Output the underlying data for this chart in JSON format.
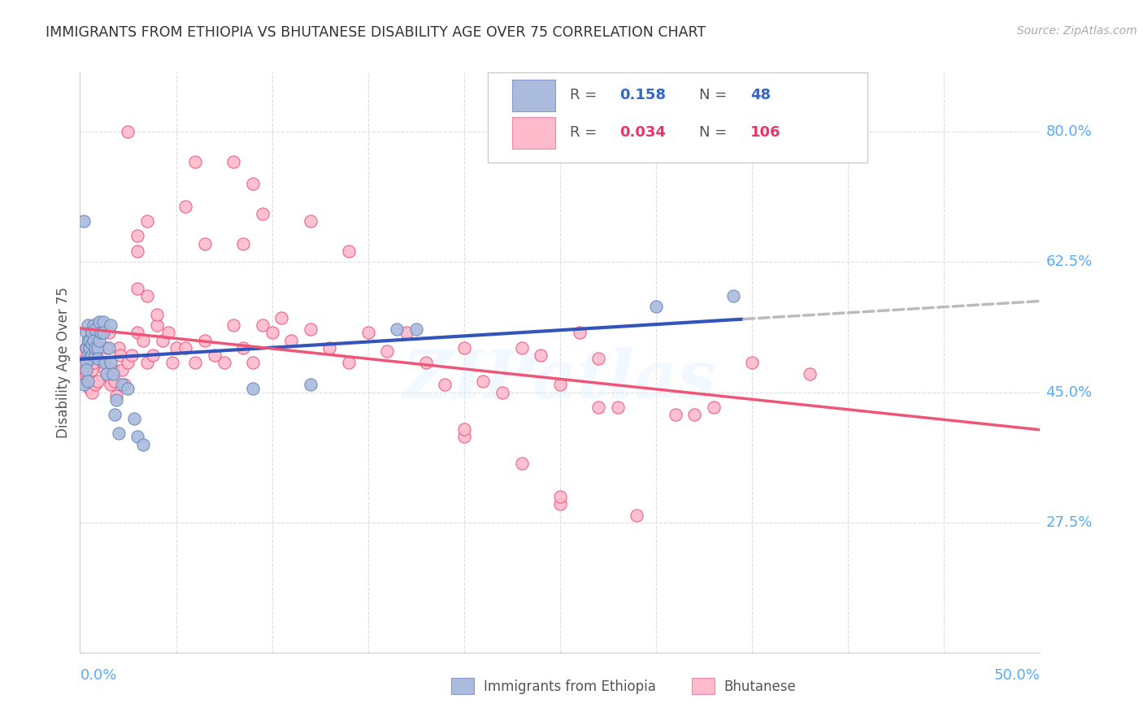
{
  "title": "IMMIGRANTS FROM ETHIOPIA VS BHUTANESE DISABILITY AGE OVER 75 CORRELATION CHART",
  "source": "Source: ZipAtlas.com",
  "ylabel": "Disability Age Over 75",
  "yticks": [
    0.275,
    0.45,
    0.625,
    0.8
  ],
  "ytick_labels": [
    "27.5%",
    "45.0%",
    "62.5%",
    "80.0%"
  ],
  "xmin": 0.0,
  "xmax": 0.5,
  "ymin": 0.1,
  "ymax": 0.88,
  "blue_color": "#AABBDD",
  "blue_line_color": "#3355BB",
  "pink_color": "#FFBBCC",
  "pink_line_color": "#EE5577",
  "dash_color": "#BBBBBB",
  "watermark": "ZIPatlas",
  "r_blue": "0.158",
  "n_blue": "48",
  "r_pink": "0.034",
  "n_pink": "106",
  "ethiopia_x": [
    0.002,
    0.003,
    0.003,
    0.004,
    0.004,
    0.004,
    0.005,
    0.005,
    0.005,
    0.006,
    0.006,
    0.006,
    0.007,
    0.007,
    0.008,
    0.008,
    0.008,
    0.009,
    0.009,
    0.01,
    0.01,
    0.011,
    0.012,
    0.012,
    0.013,
    0.014,
    0.015,
    0.016,
    0.016,
    0.017,
    0.018,
    0.019,
    0.02,
    0.022,
    0.025,
    0.028,
    0.03,
    0.033,
    0.09,
    0.12,
    0.165,
    0.175,
    0.3,
    0.34,
    0.002,
    0.003,
    0.003,
    0.004
  ],
  "ethiopia_y": [
    0.68,
    0.51,
    0.53,
    0.5,
    0.52,
    0.54,
    0.51,
    0.495,
    0.52,
    0.5,
    0.515,
    0.53,
    0.54,
    0.52,
    0.535,
    0.5,
    0.51,
    0.51,
    0.495,
    0.545,
    0.52,
    0.53,
    0.545,
    0.53,
    0.49,
    0.475,
    0.51,
    0.54,
    0.49,
    0.475,
    0.42,
    0.44,
    0.395,
    0.46,
    0.455,
    0.415,
    0.39,
    0.38,
    0.455,
    0.46,
    0.535,
    0.535,
    0.565,
    0.58,
    0.46,
    0.49,
    0.48,
    0.465
  ],
  "bhutanese_x": [
    0.001,
    0.001,
    0.002,
    0.002,
    0.002,
    0.003,
    0.003,
    0.003,
    0.004,
    0.004,
    0.004,
    0.005,
    0.005,
    0.005,
    0.006,
    0.006,
    0.006,
    0.007,
    0.007,
    0.008,
    0.008,
    0.009,
    0.009,
    0.01,
    0.011,
    0.012,
    0.013,
    0.014,
    0.015,
    0.015,
    0.016,
    0.017,
    0.018,
    0.019,
    0.02,
    0.021,
    0.022,
    0.023,
    0.025,
    0.027,
    0.03,
    0.033,
    0.035,
    0.038,
    0.04,
    0.043,
    0.046,
    0.048,
    0.05,
    0.055,
    0.06,
    0.065,
    0.07,
    0.075,
    0.08,
    0.085,
    0.09,
    0.095,
    0.1,
    0.105,
    0.11,
    0.12,
    0.13,
    0.14,
    0.15,
    0.16,
    0.17,
    0.18,
    0.19,
    0.2,
    0.21,
    0.22,
    0.23,
    0.24,
    0.25,
    0.26,
    0.27,
    0.055,
    0.065,
    0.085,
    0.095,
    0.025,
    0.08,
    0.09,
    0.2,
    0.23,
    0.25,
    0.03,
    0.03,
    0.06,
    0.035,
    0.14,
    0.27,
    0.28,
    0.31,
    0.32,
    0.33,
    0.35,
    0.38,
    0.03,
    0.035,
    0.04,
    0.12,
    0.2,
    0.25,
    0.29
  ],
  "bhutanese_y": [
    0.5,
    0.48,
    0.49,
    0.47,
    0.505,
    0.475,
    0.465,
    0.51,
    0.5,
    0.48,
    0.46,
    0.52,
    0.51,
    0.455,
    0.465,
    0.48,
    0.45,
    0.49,
    0.5,
    0.46,
    0.54,
    0.51,
    0.465,
    0.54,
    0.53,
    0.49,
    0.48,
    0.51,
    0.53,
    0.47,
    0.46,
    0.48,
    0.465,
    0.445,
    0.51,
    0.5,
    0.48,
    0.46,
    0.49,
    0.5,
    0.53,
    0.52,
    0.49,
    0.5,
    0.54,
    0.52,
    0.53,
    0.49,
    0.51,
    0.51,
    0.49,
    0.52,
    0.5,
    0.49,
    0.54,
    0.51,
    0.49,
    0.54,
    0.53,
    0.55,
    0.52,
    0.535,
    0.51,
    0.49,
    0.53,
    0.505,
    0.53,
    0.49,
    0.46,
    0.51,
    0.465,
    0.45,
    0.51,
    0.5,
    0.46,
    0.53,
    0.495,
    0.7,
    0.65,
    0.65,
    0.69,
    0.8,
    0.76,
    0.73,
    0.39,
    0.355,
    0.3,
    0.66,
    0.64,
    0.76,
    0.68,
    0.64,
    0.43,
    0.43,
    0.42,
    0.42,
    0.43,
    0.49,
    0.475,
    0.59,
    0.58,
    0.555,
    0.68,
    0.4,
    0.31,
    0.285
  ]
}
